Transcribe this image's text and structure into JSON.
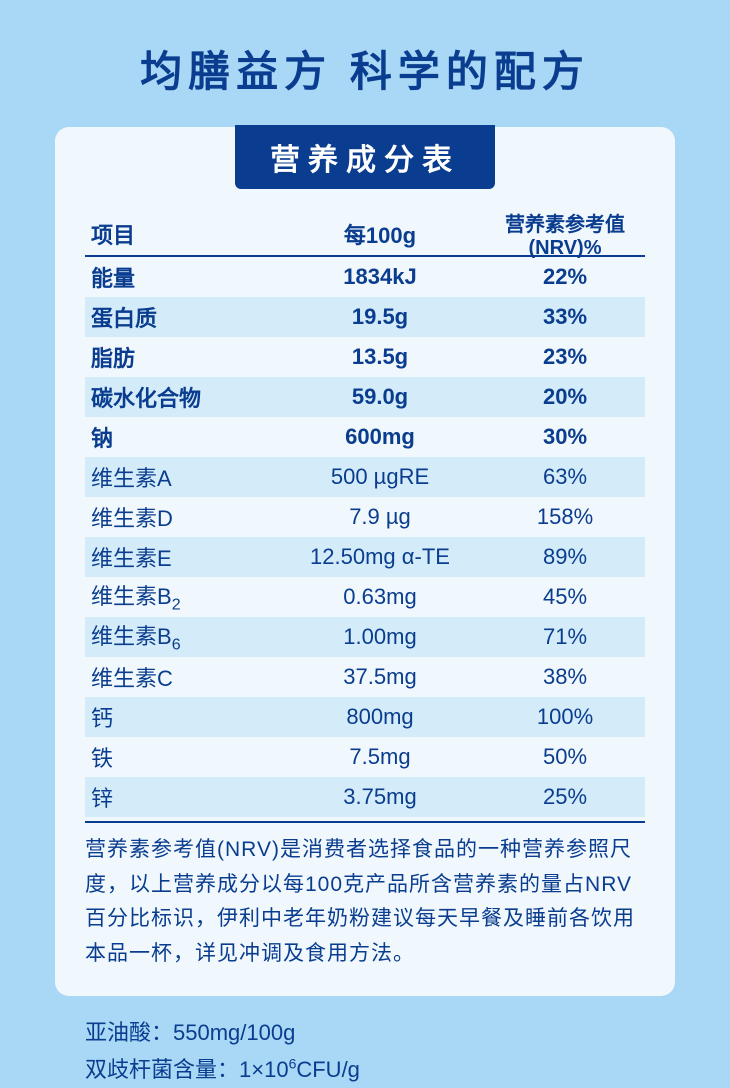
{
  "title": "均膳益方 科学的配方",
  "band": "营养成分表",
  "colors": {
    "page_bg": "#a8d8f5",
    "card_bg": "#f0f8fd",
    "stripe_bg": "#d4ecf9",
    "text": "#0a3d8f",
    "band_bg": "#0a3d8f",
    "band_text": "#ffffff"
  },
  "headers": {
    "c1": "项目",
    "c2": "每100g",
    "c3": "营养素参考值(NRV)%"
  },
  "rows": [
    {
      "name": "能量",
      "per100g": "1834kJ",
      "nrv": "22%",
      "bold": true,
      "stripe": false
    },
    {
      "name": "蛋白质",
      "per100g": "19.5g",
      "nrv": "33%",
      "bold": true,
      "stripe": true
    },
    {
      "name": "脂肪",
      "per100g": "13.5g",
      "nrv": "23%",
      "bold": true,
      "stripe": false
    },
    {
      "name": "碳水化合物",
      "per100g": "59.0g",
      "nrv": "20%",
      "bold": true,
      "stripe": true
    },
    {
      "name": "钠",
      "per100g": "600mg",
      "nrv": "30%",
      "bold": true,
      "stripe": false
    },
    {
      "name": "维生素A",
      "per100g": "500 µgRE",
      "nrv": "63%",
      "bold": false,
      "stripe": true
    },
    {
      "name": "维生素D",
      "per100g": "7.9 µg",
      "nrv": "158%",
      "bold": false,
      "stripe": false
    },
    {
      "name": "维生素E",
      "per100g": "12.50mg α-TE",
      "nrv": "89%",
      "bold": false,
      "stripe": true
    },
    {
      "name": "维生素B",
      "sub": "2",
      "per100g": "0.63mg",
      "nrv": "45%",
      "bold": false,
      "stripe": false
    },
    {
      "name": "维生素B",
      "sub": "6",
      "per100g": "1.00mg",
      "nrv": "71%",
      "bold": false,
      "stripe": true
    },
    {
      "name": "维生素C",
      "per100g": "37.5mg",
      "nrv": "38%",
      "bold": false,
      "stripe": false
    },
    {
      "name": "钙",
      "per100g": "800mg",
      "nrv": "100%",
      "bold": false,
      "stripe": true
    },
    {
      "name": "铁",
      "per100g": "7.5mg",
      "nrv": "50%",
      "bold": false,
      "stripe": false
    },
    {
      "name": "锌",
      "per100g": "3.75mg",
      "nrv": "25%",
      "bold": false,
      "stripe": true
    }
  ],
  "note": "营养素参考值(NRV)是消费者选择食品的一种营养参照尺度，以上营养成分以每100克产品所含营养素的量占NRV百分比标识，伊利中老年奶粉建议每天早餐及睡前各饮用本品一杯，详见冲调及食用方法。",
  "footer": {
    "line1": "亚油酸：550mg/100g",
    "line2_pre": "双歧杆菌含量：1×10",
    "line2_sup": "6",
    "line2_post": "CFU/g"
  }
}
